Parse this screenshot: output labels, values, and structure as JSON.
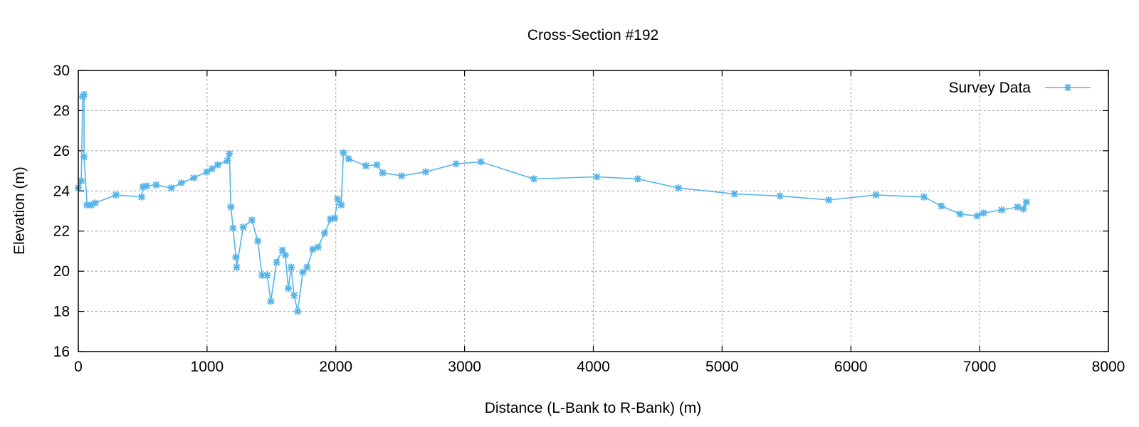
{
  "chart_data": {
    "type": "line",
    "title": "Cross-Section #192",
    "xlabel": "Distance (L-Bank to R-Bank) (m)",
    "ylabel": "Elevation (m)",
    "xlim": [
      0,
      8000
    ],
    "ylim": [
      16,
      30
    ],
    "xticks": [
      0,
      1000,
      2000,
      3000,
      4000,
      5000,
      6000,
      7000,
      8000
    ],
    "yticks": [
      16,
      18,
      20,
      22,
      24,
      26,
      28,
      30
    ],
    "grid": true,
    "legend_position": "top-right",
    "color": "#56b4e9",
    "series": [
      {
        "name": "Survey Data",
        "marker": "asterisk",
        "x": [
          0,
          23,
          34,
          45,
          45,
          68,
          100,
          130,
          293,
          491,
          502,
          530,
          604,
          722,
          801,
          897,
          999,
          1038,
          1083,
          1157,
          1174,
          1185,
          1202,
          1224,
          1230,
          1281,
          1348,
          1394,
          1427,
          1467,
          1495,
          1540,
          1585,
          1608,
          1631,
          1653,
          1676,
          1704,
          1743,
          1777,
          1822,
          1862,
          1913,
          1958,
          1992,
          2014,
          2042,
          2059,
          2099,
          2234,
          2319,
          2364,
          2511,
          2697,
          2934,
          3126,
          3538,
          4028,
          4344,
          4660,
          5095,
          5450,
          5828,
          6195,
          6567,
          6703,
          6849,
          6979,
          7030,
          7171,
          7295,
          7340,
          7363
        ],
        "y": [
          24.15,
          24.5,
          28.7,
          28.8,
          25.7,
          23.3,
          23.3,
          23.4,
          23.8,
          23.7,
          24.2,
          24.25,
          24.3,
          24.15,
          24.4,
          24.65,
          24.95,
          25.1,
          25.3,
          25.5,
          25.85,
          23.2,
          22.15,
          20.7,
          20.2,
          22.2,
          22.55,
          21.5,
          19.8,
          19.8,
          18.5,
          20.45,
          21.05,
          20.8,
          19.15,
          20.2,
          18.8,
          18.0,
          19.95,
          20.2,
          21.1,
          21.2,
          21.9,
          22.6,
          22.65,
          23.6,
          23.3,
          25.9,
          25.6,
          25.25,
          25.3,
          24.9,
          24.75,
          24.95,
          25.35,
          25.45,
          24.6,
          24.7,
          24.6,
          24.15,
          23.85,
          23.75,
          23.55,
          23.8,
          23.7,
          23.25,
          22.85,
          22.75,
          22.9,
          23.05,
          23.2,
          23.1,
          23.45
        ]
      }
    ]
  }
}
